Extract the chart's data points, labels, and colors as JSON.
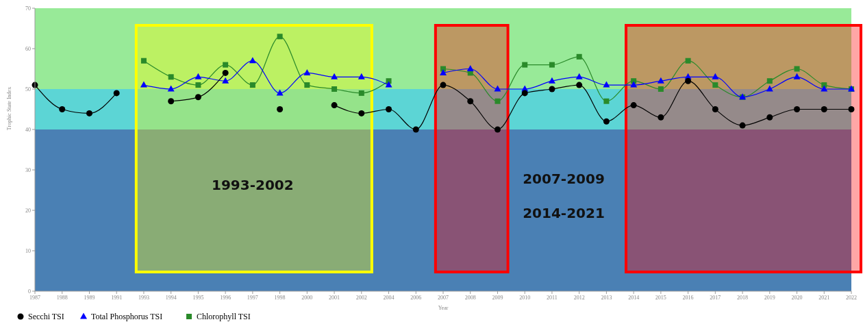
{
  "chart_data": {
    "type": "line",
    "xlabel": "Year",
    "ylabel": "Trophic State Index",
    "categories": [
      "1987",
      "1988",
      "1989",
      "1991",
      "1993",
      "1994",
      "1995",
      "1996",
      "1997",
      "1998",
      "2000",
      "2001",
      "2002",
      "2004",
      "2006",
      "2007",
      "2008",
      "2009",
      "2010",
      "2011",
      "2012",
      "2013",
      "2014",
      "2015",
      "2016",
      "2017",
      "2018",
      "2019",
      "2020",
      "2021",
      "2022"
    ],
    "series": [
      {
        "name": "Secchi TSI",
        "color": "#000000",
        "marker": "circle",
        "values": [
          51,
          45,
          44,
          49,
          null,
          47,
          48,
          54,
          null,
          45,
          null,
          46,
          44,
          45,
          40,
          51,
          47,
          40,
          49,
          50,
          51,
          42,
          46,
          43,
          52,
          45,
          41,
          43,
          45,
          45,
          45
        ]
      },
      {
        "name": "Total Phosphorus TSI",
        "color": "#0000ff",
        "marker": "triangle",
        "values": [
          null,
          null,
          null,
          null,
          51,
          50,
          53,
          52,
          57,
          49,
          54,
          53,
          53,
          51,
          null,
          54,
          55,
          50,
          50,
          52,
          53,
          51,
          51,
          52,
          53,
          53,
          48,
          50,
          53,
          50,
          50
        ]
      },
      {
        "name": "Chlorophyll TSI",
        "color": "#2a8a2a",
        "marker": "square",
        "values": [
          null,
          null,
          null,
          null,
          57,
          53,
          51,
          56,
          51,
          63,
          51,
          50,
          49,
          52,
          null,
          55,
          54,
          47,
          56,
          56,
          58,
          47,
          52,
          50,
          57,
          51,
          48,
          52,
          55,
          51,
          50
        ]
      }
    ],
    "ylim": [
      0,
      70
    ],
    "yticks": [
      0,
      10,
      20,
      30,
      40,
      50,
      60,
      70
    ],
    "grid": false,
    "legend": "bottom left",
    "bands": [
      {
        "axis": "y",
        "from": 0,
        "to": 40,
        "color": "#4a80b4"
      },
      {
        "axis": "y",
        "from": 40,
        "to": 50,
        "color": "#5cd5d5"
      },
      {
        "axis": "y",
        "from": 50,
        "to": 70,
        "color": "#98ea98"
      },
      {
        "axis": "x",
        "from": "1993",
        "to": "2002",
        "color": "#ffff00"
      },
      {
        "axis": "x",
        "from": "2007",
        "to": "2009",
        "color": "#ff0000"
      },
      {
        "axis": "x",
        "from": "2014",
        "to": "2022",
        "color": "#ff0000"
      }
    ],
    "annotations": [
      "1993-2002",
      "2007-2009",
      "2014-2021"
    ]
  }
}
